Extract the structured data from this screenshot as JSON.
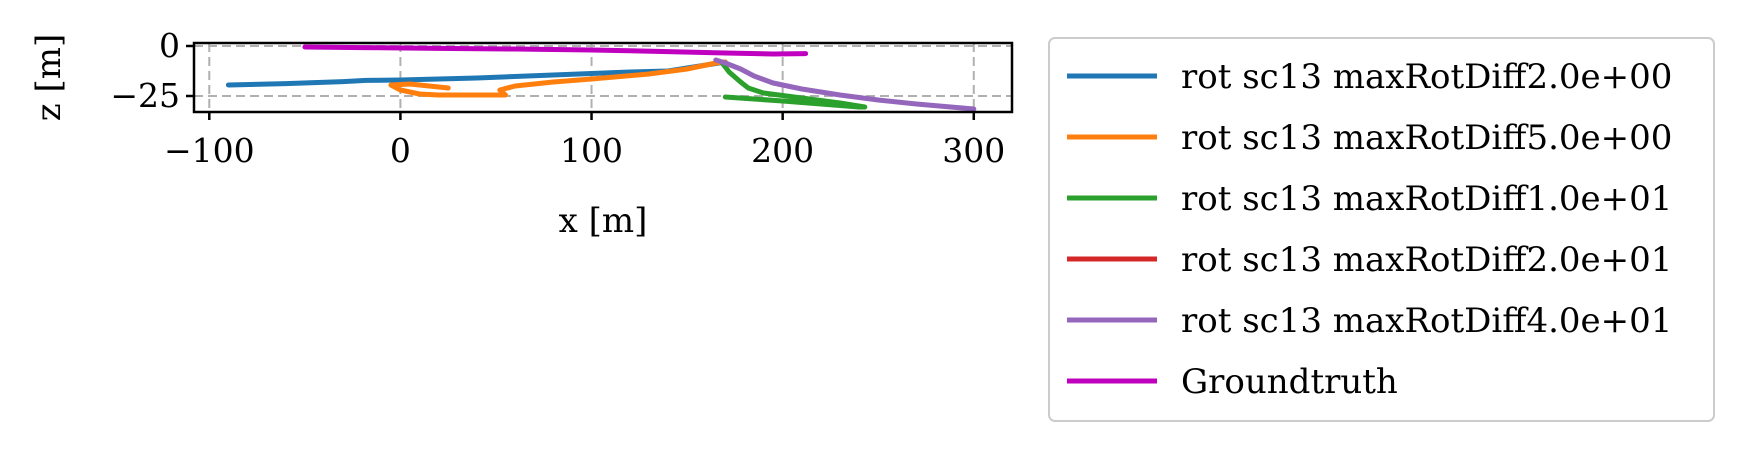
{
  "chart_data": {
    "type": "line",
    "xlabel": "x [m]",
    "ylabel": "z [m]",
    "xlim": [
      -108,
      320
    ],
    "ylim": [
      -33,
      1.5
    ],
    "xticks": [
      -100,
      0,
      100,
      200,
      300
    ],
    "xtick_labels": [
      "−100",
      "0",
      "100",
      "200",
      "300"
    ],
    "yticks": [
      0,
      -25
    ],
    "ytick_labels": [
      "0",
      "−25"
    ],
    "grid": true,
    "legend_position": "right, outside plot",
    "series": [
      {
        "name": "rot sc13 maxRotDiff2.0e+00",
        "color": "#1f77b4",
        "x": [
          -90,
          -60,
          -30,
          -18,
          0,
          40,
          80,
          120,
          140,
          150,
          160,
          170
        ],
        "y": [
          -19.5,
          -18.8,
          -17.8,
          -17.2,
          -17.0,
          -16.0,
          -14.5,
          -13.0,
          -12.5,
          -11.0,
          -9.5,
          -8.0
        ]
      },
      {
        "name": "rot sc13 maxRotDiff5.0e+00",
        "color": "#ff7f0e",
        "x": [
          25,
          15,
          5,
          -5,
          0,
          10,
          20,
          30,
          40,
          55,
          52,
          60,
          80,
          100,
          130,
          150,
          160,
          165,
          170
        ],
        "y": [
          -21.0,
          -20.0,
          -19.0,
          -19.5,
          -22.0,
          -24.0,
          -24.5,
          -24.5,
          -24.5,
          -24.5,
          -22.0,
          -20.0,
          -18.0,
          -16.5,
          -14.0,
          -11.5,
          -9.5,
          -8.5,
          -8.0
        ]
      },
      {
        "name": "rot sc13 maxRotDiff1.0e+01",
        "color": "#2ca02c",
        "x": [
          168,
          172,
          178,
          182,
          190,
          210,
          230,
          243,
          240,
          220,
          200,
          185,
          170
        ],
        "y": [
          -8.0,
          -13.0,
          -18.0,
          -21.0,
          -23.5,
          -26.0,
          -28.5,
          -30.5,
          -30.5,
          -29.0,
          -27.5,
          -26.5,
          -25.5
        ]
      },
      {
        "name": "rot sc13 maxRotDiff2.0e+01",
        "color": "#d62728",
        "x": [],
        "y": []
      },
      {
        "name": "rot sc13 maxRotDiff4.0e+01",
        "color": "#9467bd",
        "x": [
          165,
          170,
          178,
          185,
          195,
          210,
          230,
          250,
          270,
          300
        ],
        "y": [
          -7.0,
          -8.5,
          -11.5,
          -15.0,
          -18.5,
          -21.5,
          -24.5,
          -27.0,
          -29.0,
          -31.5
        ]
      },
      {
        "name": "Groundtruth",
        "color": "#bf00bf",
        "x": [
          -50,
          -20,
          20,
          60,
          100,
          140,
          170,
          195,
          212
        ],
        "y": [
          -0.5,
          -0.8,
          -1.2,
          -1.5,
          -2.0,
          -2.8,
          -3.5,
          -4.0,
          -3.8
        ]
      }
    ]
  }
}
